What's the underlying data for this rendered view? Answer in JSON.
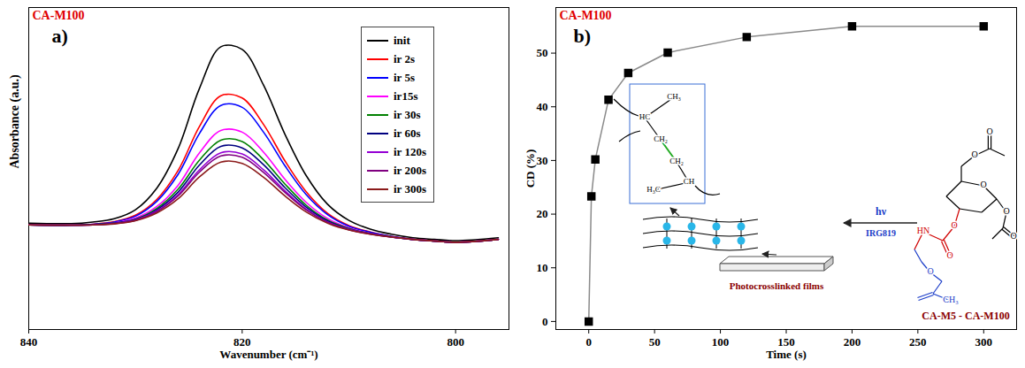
{
  "chart_data": [
    {
      "type": "line",
      "title": "CA-M100",
      "panel": "a)",
      "x_label": "Wavenumber (cm⁻¹)",
      "y_label": "Absorbance (a.u.)",
      "x": [
        840,
        836,
        834,
        832,
        830,
        828,
        826,
        824,
        822,
        820,
        818,
        816,
        814,
        812,
        810,
        808,
        806,
        804,
        802,
        800,
        796
      ],
      "series": [
        {
          "name": "init",
          "color": "#000000",
          "values": [
            0.33,
            0.329,
            0.334,
            0.344,
            0.372,
            0.439,
            0.562,
            0.749,
            0.878,
            0.87,
            0.759,
            0.607,
            0.478,
            0.389,
            0.339,
            0.312,
            0.296,
            0.285,
            0.28,
            0.276,
            0.285
          ]
        },
        {
          "name": "ir 2s",
          "color": "#ff0000",
          "values": [
            0.325,
            0.324,
            0.327,
            0.335,
            0.355,
            0.404,
            0.494,
            0.631,
            0.726,
            0.719,
            0.637,
            0.524,
            0.428,
            0.361,
            0.323,
            0.303,
            0.289,
            0.28,
            0.275,
            0.271,
            0.28
          ]
        },
        {
          "name": "ir 5s",
          "color": "#0000ff",
          "values": [
            0.325,
            0.324,
            0.327,
            0.334,
            0.352,
            0.398,
            0.482,
            0.609,
            0.696,
            0.69,
            0.613,
            0.509,
            0.419,
            0.357,
            0.321,
            0.302,
            0.289,
            0.28,
            0.275,
            0.271,
            0.28
          ]
        },
        {
          "name": "ir15s",
          "color": "#ff00ff",
          "values": [
            0.325,
            0.324,
            0.326,
            0.331,
            0.346,
            0.382,
            0.448,
            0.549,
            0.618,
            0.613,
            0.551,
            0.467,
            0.395,
            0.345,
            0.316,
            0.299,
            0.288,
            0.28,
            0.275,
            0.271,
            0.28
          ]
        },
        {
          "name": "ir 30s",
          "color": "#008000",
          "values": [
            0.325,
            0.324,
            0.326,
            0.33,
            0.343,
            0.376,
            0.436,
            0.526,
            0.588,
            0.584,
            0.527,
            0.452,
            0.386,
            0.34,
            0.314,
            0.298,
            0.288,
            0.28,
            0.275,
            0.271,
            0.28
          ]
        },
        {
          "name": "ir 60s",
          "color": "#000080",
          "values": [
            0.325,
            0.324,
            0.326,
            0.33,
            0.342,
            0.372,
            0.427,
            0.511,
            0.569,
            0.564,
            0.512,
            0.441,
            0.38,
            0.337,
            0.312,
            0.298,
            0.288,
            0.28,
            0.275,
            0.271,
            0.28
          ]
        },
        {
          "name": "ir 120s",
          "color": "#9400d3",
          "values": [
            0.325,
            0.324,
            0.325,
            0.329,
            0.34,
            0.368,
            0.419,
            0.496,
            0.549,
            0.545,
            0.496,
            0.431,
            0.374,
            0.334,
            0.311,
            0.297,
            0.287,
            0.28,
            0.275,
            0.271,
            0.28
          ]
        },
        {
          "name": "ir 200s",
          "color": "#800080",
          "values": [
            0.325,
            0.324,
            0.325,
            0.329,
            0.339,
            0.366,
            0.415,
            0.489,
            0.539,
            0.535,
            0.488,
            0.426,
            0.371,
            0.333,
            0.31,
            0.297,
            0.287,
            0.28,
            0.275,
            0.271,
            0.28
          ]
        },
        {
          "name": "ir 300s",
          "color": "#8b1a1a",
          "values": [
            0.325,
            0.324,
            0.325,
            0.328,
            0.338,
            0.362,
            0.406,
            0.474,
            0.52,
            0.516,
            0.473,
            0.415,
            0.365,
            0.33,
            0.309,
            0.296,
            0.287,
            0.28,
            0.275,
            0.271,
            0.28
          ]
        }
      ],
      "xlim": [
        840,
        795
      ],
      "xticks": [
        840,
        820,
        800
      ],
      "ylim": [
        0,
        1
      ],
      "yticks": [],
      "tick_labels": "x",
      "legend": "top-right",
      "grid": false
    },
    {
      "type": "line",
      "marker": "square",
      "color": "#000000",
      "title": "CA-M100",
      "panel": "b)",
      "x_label": "Time (s)",
      "y_label": "CD (%)",
      "x": [
        0,
        2,
        5,
        15,
        30,
        60,
        120,
        200,
        300
      ],
      "values": [
        0,
        23.3,
        30.2,
        41.3,
        46.3,
        50.1,
        53,
        55,
        55
      ],
      "xlim": [
        -25,
        325
      ],
      "xticks": [
        0,
        50,
        100,
        150,
        200,
        250,
        300
      ],
      "ylim": [
        -1.5,
        58.5
      ],
      "yticks": [
        0,
        10,
        20,
        30,
        40,
        50
      ],
      "grid": false,
      "annotations": {
        "inset_labels": [
          "CH₃",
          "HC",
          "CH₂",
          "CH₂",
          "H₃C",
          "CH"
        ],
        "light": "hν",
        "initiator": "IRG819",
        "film": "Photocrosslinked films",
        "monomer": "CA-M5 - CA-M100",
        "monomer_labels": [
          "O",
          "O",
          "O",
          "O",
          "O",
          "HN",
          "O",
          "O",
          "O",
          "CH₃"
        ]
      }
    }
  ]
}
